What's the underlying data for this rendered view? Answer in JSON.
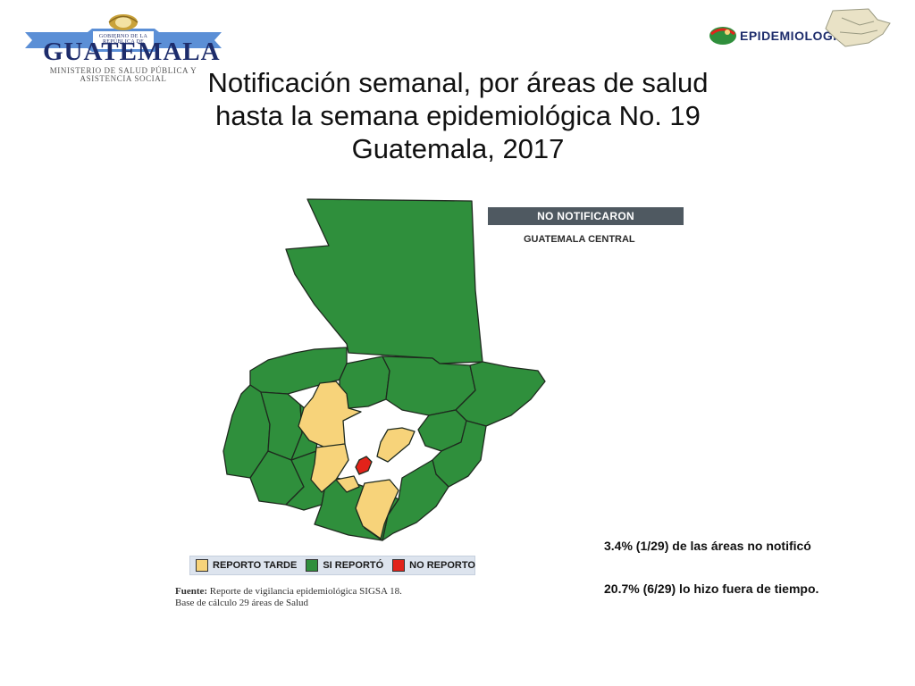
{
  "logo_left": {
    "gov_line": "GOBIERNO DE LA REPÚBLICA DE",
    "country": "GUATEMALA",
    "ministry_line1": "MINISTERIO DE SALUD PÚBLICA Y",
    "ministry_line2": "ASISTENCIA SOCIAL",
    "colors": {
      "blue": "#1d2c6b",
      "banner": "#5b8fd6",
      "gold": "#c9a23a"
    }
  },
  "logo_right": {
    "text": "EPIDEMIOLOGIA"
  },
  "title": {
    "line1": "Notificación semanal, por áreas de salud",
    "line2": "hasta la semana epidemiológica No. 19",
    "line3": "Guatemala, 2017"
  },
  "no_notificaron": {
    "header": "NO NOTIFICARON",
    "areas": [
      "GUATEMALA CENTRAL"
    ]
  },
  "legend": {
    "items": [
      {
        "label": "REPORTO TARDE",
        "color": "#f7d37a"
      },
      {
        "label": "SI REPORTÓ",
        "color": "#2f8f3c"
      },
      {
        "label": "NO REPORTO",
        "color": "#e2231a"
      }
    ]
  },
  "source": {
    "label": "Fuente:",
    "text": "Reporte de vigilancia epidemiológica SIGSA 18.",
    "line2": "Base de cálculo 29 áreas de Salud"
  },
  "stats": {
    "line1": "3.4%  (1/29) de las áreas no notificó",
    "line2": "20.7% (6/29)  lo hizo fuera de tiempo."
  },
  "map_colors": {
    "reported": "#2f8f3c",
    "late": "#f7d37a",
    "not_reported": "#e2231a",
    "border": "#1e2a1e"
  }
}
